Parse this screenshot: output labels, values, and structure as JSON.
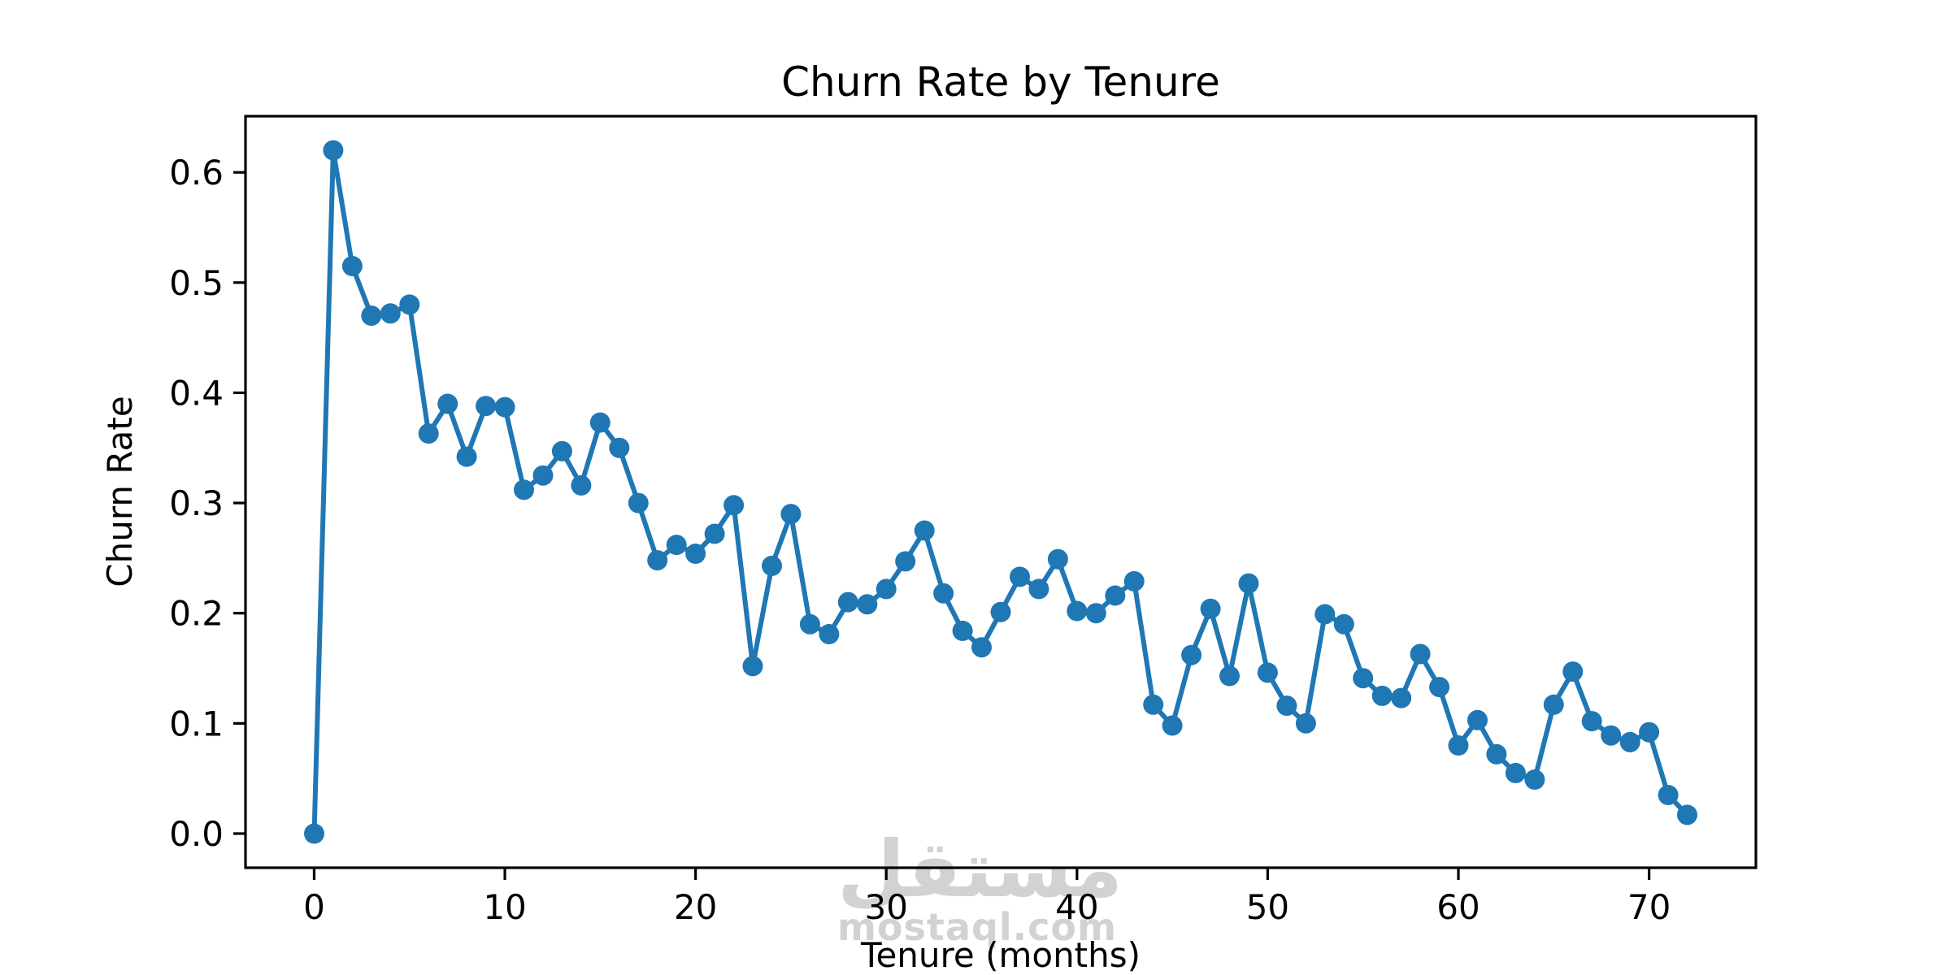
{
  "chart_data": {
    "type": "line",
    "title": "Churn Rate by Tenure",
    "xlabel": "Tenure (months)",
    "ylabel": "Churn Rate",
    "grid": false,
    "legend": null,
    "xlim": [
      -3.6,
      75.6
    ],
    "ylim": [
      -0.031,
      0.651
    ],
    "x_ticks": [
      0,
      10,
      20,
      30,
      40,
      50,
      60,
      70
    ],
    "y_ticks": [
      0.0,
      0.1,
      0.2,
      0.3,
      0.4,
      0.5,
      0.6
    ],
    "series": [
      {
        "name": "churn_rate",
        "color": "#1f77b4",
        "marker": "circle",
        "x": [
          0,
          1,
          2,
          3,
          4,
          5,
          6,
          7,
          8,
          9,
          10,
          11,
          12,
          13,
          14,
          15,
          16,
          17,
          18,
          19,
          20,
          21,
          22,
          23,
          24,
          25,
          26,
          27,
          28,
          29,
          30,
          31,
          32,
          33,
          34,
          35,
          36,
          37,
          38,
          39,
          40,
          41,
          42,
          43,
          44,
          45,
          46,
          47,
          48,
          49,
          50,
          51,
          52,
          53,
          54,
          55,
          56,
          57,
          58,
          59,
          60,
          61,
          62,
          63,
          64,
          65,
          66,
          67,
          68,
          69,
          70,
          71,
          72
        ],
        "y": [
          0.0,
          0.62,
          0.515,
          0.47,
          0.472,
          0.48,
          0.363,
          0.39,
          0.342,
          0.388,
          0.387,
          0.312,
          0.325,
          0.347,
          0.316,
          0.373,
          0.35,
          0.3,
          0.248,
          0.262,
          0.254,
          0.272,
          0.298,
          0.152,
          0.243,
          0.29,
          0.19,
          0.181,
          0.21,
          0.208,
          0.222,
          0.247,
          0.275,
          0.218,
          0.184,
          0.169,
          0.201,
          0.233,
          0.222,
          0.249,
          0.202,
          0.2,
          0.216,
          0.229,
          0.117,
          0.098,
          0.162,
          0.204,
          0.143,
          0.227,
          0.146,
          0.116,
          0.1,
          0.199,
          0.19,
          0.141,
          0.125,
          0.123,
          0.163,
          0.133,
          0.08,
          0.103,
          0.072,
          0.055,
          0.049,
          0.117,
          0.147,
          0.102,
          0.089,
          0.083,
          0.092,
          0.035,
          0.017
        ]
      }
    ],
    "colors": {
      "line": "#1f77b4",
      "axes": "#000000",
      "background": "#ffffff"
    }
  },
  "watermark": {
    "arabic": "مستقل",
    "latin": "mostaql.com",
    "color": "#d2d2d2"
  }
}
